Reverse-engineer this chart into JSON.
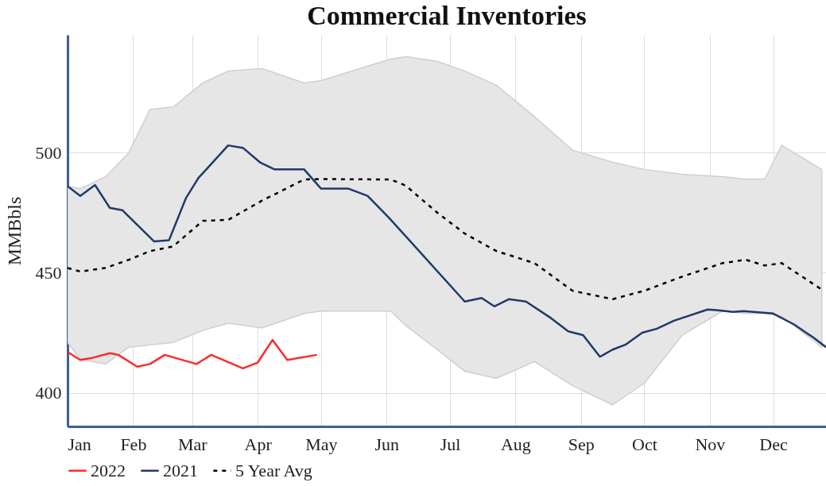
{
  "chart_data": {
    "type": "line",
    "title": "Commercial Inventories",
    "ylabel": "MMBbls",
    "xlim": [
      "--01-01",
      "--12-26"
    ],
    "xticks": [
      {
        "value": "--01-01",
        "label": "Jan"
      },
      {
        "value": "--02-01",
        "label": "Feb"
      },
      {
        "value": "--03-01",
        "label": "Mar"
      },
      {
        "value": "--04-01",
        "label": "Apr"
      },
      {
        "value": "--05-01",
        "label": "May"
      },
      {
        "value": "--06-01",
        "label": "Jun"
      },
      {
        "value": "--07-01",
        "label": "Jul"
      },
      {
        "value": "--08-01",
        "label": "Aug"
      },
      {
        "value": "--09-01",
        "label": "Sep"
      },
      {
        "value": "--10-01",
        "label": "Oct"
      },
      {
        "value": "--11-01",
        "label": "Nov"
      },
      {
        "value": "--12-01",
        "label": "Dec"
      }
    ],
    "ylim": [
      386,
      549
    ],
    "yticks": [
      400,
      450,
      500
    ],
    "grid": true,
    "legend": "bottom",
    "series": [
      {
        "name": "2022",
        "color": "#ff2a2a",
        "line_style": "solid",
        "x": [
          "--01-01",
          "--01-07",
          "--01-12",
          "--01-21",
          "--01-25",
          "--02-03",
          "--02-09",
          "--02-16",
          "--03-03",
          "--03-10",
          "--03-25",
          "--04-01",
          "--04-08",
          "--04-15",
          "--04-29"
        ],
        "values": [
          417,
          413.7,
          414.4,
          416.5,
          415.8,
          410.9,
          412,
          415.8,
          412,
          415.8,
          410.2,
          412.6,
          422,
          413.7,
          415.8
        ]
      },
      {
        "name": "2021",
        "color": "#1f3a68",
        "line_style": "solid",
        "x": [
          "--01-01",
          "--01-07",
          "--01-14",
          "--01-21",
          "--01-27",
          "--02-11",
          "--02-18",
          "--02-26",
          "--03-04",
          "--03-18",
          "--03-25",
          "--04-02",
          "--04-09",
          "--04-23",
          "--05-01",
          "--05-14",
          "--05-23",
          "--06-02",
          "--07-08",
          "--07-16",
          "--07-22",
          "--07-29",
          "--08-06",
          "--08-18",
          "--08-26",
          "--09-02",
          "--09-10",
          "--09-16",
          "--09-22",
          "--09-30",
          "--10-07",
          "--10-15",
          "--10-31",
          "--11-04",
          "--11-12",
          "--11-17",
          "--12-01",
          "--12-11",
          "--12-20",
          "--12-26"
        ],
        "values": [
          486,
          482,
          486.5,
          477,
          476,
          463,
          463.5,
          481,
          489.5,
          503,
          502,
          496,
          493,
          493,
          485,
          485,
          482,
          473,
          438,
          439.5,
          436,
          439,
          438,
          431,
          425.6,
          424,
          415,
          418,
          420,
          425,
          426.7,
          430,
          434.7,
          434.4,
          433.7,
          434,
          433,
          428.4,
          423,
          419
        ]
      },
      {
        "name": "5 Year Avg",
        "color": "#000000",
        "line_style": "dotted",
        "x": [
          "--01-01",
          "--01-07",
          "--01-19",
          "--01-30",
          "--02-09",
          "--02-20",
          "--03-06",
          "--03-18",
          "--04-03",
          "--04-23",
          "--05-01",
          "--06-03",
          "--06-10",
          "--06-25",
          "--07-08",
          "--07-23",
          "--08-10",
          "--08-28",
          "--09-16",
          "--10-01",
          "--10-19",
          "--11-07",
          "--11-18",
          "--11-27",
          "--12-05",
          "--12-24"
        ],
        "values": [
          452,
          450.5,
          452,
          455.4,
          459,
          461,
          471.6,
          472,
          480,
          488.8,
          489,
          488.8,
          486.3,
          475,
          466.3,
          459,
          454,
          442.5,
          439,
          442.5,
          448.4,
          454,
          455.4,
          453,
          454,
          443
        ],
        "lower": [
          421,
          414,
          412,
          419,
          420,
          421,
          426,
          429,
          427,
          433,
          434,
          434,
          428,
          418,
          409,
          406,
          413,
          403,
          395,
          404,
          424,
          434,
          433,
          433,
          432,
          419
        ],
        "upper": [
          486,
          485,
          490,
          500,
          518,
          519,
          529,
          534,
          535,
          529,
          530,
          539,
          540,
          538,
          534,
          528,
          515,
          501,
          496,
          493,
          491,
          490,
          489,
          489,
          503,
          493
        ]
      }
    ]
  }
}
